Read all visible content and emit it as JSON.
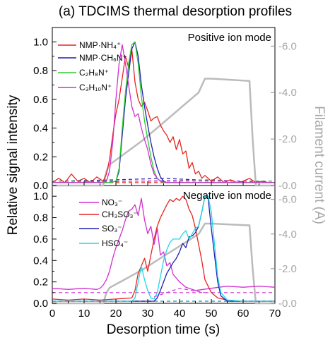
{
  "chart_data": {
    "type": "line",
    "title": "(a) TDCIMS thermal desorption profiles",
    "xlabel": "Desorption time (s)",
    "ylabel": "Relative signal intensity",
    "y2label": "Filament current (A)",
    "xlim": [
      0,
      70
    ],
    "x_ticks": [
      "0",
      "10",
      "20",
      "30",
      "40",
      "50",
      "60",
      "70"
    ],
    "panels": [
      {
        "mode_label": "Positive ion mode",
        "ylim": [
          0,
          1.1
        ],
        "y_ticks": [
          "0.0",
          "0.2",
          "0.4",
          "0.6",
          "0.8",
          "1.0"
        ],
        "y2lim": [
          0,
          6.8
        ],
        "y2_ticks": [
          "0.0",
          "2.0",
          "4.0",
          "6.0"
        ],
        "series": [
          {
            "legend": "NMP·NH₄⁺",
            "color": "#e8231f",
            "x": [
              0,
              2,
              4,
              6,
              8,
              10,
              12,
              14,
              16,
              17,
              18,
              19,
              20,
              21,
              22,
              23,
              24,
              25,
              26,
              27,
              28,
              29,
              30,
              31,
              32,
              33,
              34,
              35,
              36,
              37,
              38,
              39,
              40,
              41,
              42,
              43,
              44,
              45,
              46,
              47,
              48,
              50,
              52,
              54,
              56,
              58,
              60,
              62,
              64,
              66,
              68,
              70
            ],
            "y": [
              0.02,
              0.05,
              0.02,
              0.08,
              0.03,
              0.05,
              0.02,
              0.06,
              0.03,
              0.08,
              0.18,
              0.35,
              0.5,
              0.6,
              0.75,
              0.9,
              0.82,
              0.95,
              0.72,
              0.6,
              0.55,
              0.58,
              0.52,
              0.45,
              0.47,
              0.48,
              0.42,
              0.38,
              0.35,
              0.3,
              0.34,
              0.25,
              0.32,
              0.22,
              0.24,
              0.12,
              0.16,
              0.08,
              0.1,
              0.05,
              0.07,
              0.03,
              0.06,
              0.02,
              0.04,
              0.02,
              0.03,
              0.05,
              0.02,
              0.03,
              0.02,
              0.02
            ]
          },
          {
            "legend": "NMP·CH₆N⁺",
            "color": "#1f1fb4",
            "x": [
              0,
              5,
              10,
              15,
              18,
              20,
              21,
              22,
              23,
              24,
              25,
              26,
              27,
              28,
              29,
              30,
              31,
              32,
              33,
              34,
              35,
              36,
              38,
              40,
              45,
              50,
              55,
              60,
              65,
              70
            ],
            "y": [
              0.02,
              0.02,
              0.02,
              0.02,
              0.02,
              0.03,
              0.1,
              0.35,
              0.6,
              0.78,
              0.95,
              1.0,
              0.9,
              0.7,
              0.55,
              0.42,
              0.3,
              0.2,
              0.12,
              0.06,
              0.03,
              0.02,
              0.02,
              0.02,
              0.02,
              0.02,
              0.02,
              0.02,
              0.02,
              0.02
            ]
          },
          {
            "legend": "C₂H₈N⁺",
            "color": "#2ecc2e",
            "x": [
              0,
              5,
              10,
              15,
              18,
              20,
              21,
              22,
              23,
              24,
              25,
              26,
              27,
              28,
              29,
              30,
              31,
              32,
              33,
              34,
              35,
              36,
              38,
              40,
              45,
              50,
              55,
              60,
              65,
              70
            ],
            "y": [
              0.02,
              0.02,
              0.02,
              0.02,
              0.02,
              0.03,
              0.12,
              0.4,
              0.65,
              0.85,
              0.98,
              1.0,
              0.85,
              0.62,
              0.45,
              0.32,
              0.2,
              0.1,
              0.05,
              0.03,
              0.02,
              0.02,
              0.02,
              0.02,
              0.02,
              0.02,
              0.02,
              0.02,
              0.02,
              0.02
            ]
          },
          {
            "legend": "C₃H₁₀N⁺",
            "color": "#d12fd1",
            "x": [
              0,
              5,
              10,
              15,
              17,
              18,
              19,
              20,
              21,
              22,
              23,
              24,
              25,
              26,
              27,
              28,
              29,
              30,
              31,
              32,
              33,
              34,
              36,
              40,
              45,
              50,
              55,
              60,
              65,
              70
            ],
            "y": [
              0.02,
              0.02,
              0.02,
              0.02,
              0.03,
              0.1,
              0.3,
              0.6,
              0.85,
              0.98,
              0.85,
              0.7,
              0.55,
              0.48,
              0.5,
              0.4,
              0.32,
              0.25,
              0.15,
              0.08,
              0.05,
              0.03,
              0.02,
              0.02,
              0.02,
              0.02,
              0.02,
              0.02,
              0.02,
              0.02
            ]
          }
        ],
        "dashed_series": [
          {
            "color": "#e8231f",
            "x": [
              0,
              70
            ],
            "y": [
              0.02,
              0.02
            ]
          },
          {
            "color": "#1f1fb4",
            "x": [
              0,
              20,
              35,
              55,
              70
            ],
            "y": [
              0.03,
              0.04,
              0.05,
              0.03,
              0.03
            ]
          },
          {
            "color": "#2ecc2e",
            "x": [
              0,
              70
            ],
            "y": [
              0.03,
              0.03
            ]
          },
          {
            "color": "#d12fd1",
            "x": [
              0,
              25,
              50,
              70
            ],
            "y": [
              0.02,
              0.03,
              0.04,
              0.02
            ]
          }
        ],
        "filament_current": {
          "color": "#bbbbbb",
          "x": [
            0,
            16,
            17,
            18,
            22,
            28,
            34,
            40,
            46,
            48,
            50,
            56,
            62,
            63,
            64,
            70
          ],
          "y": [
            0,
            0,
            0.6,
            0.9,
            1.3,
            1.9,
            2.6,
            3.3,
            4.0,
            4.6,
            4.6,
            4.55,
            4.5,
            2.0,
            0,
            0
          ]
        }
      },
      {
        "mode_label": "Negative ion mode",
        "ylim": [
          0,
          1.1
        ],
        "y_ticks": [
          "0.0",
          "0.2",
          "0.4",
          "0.6",
          "0.8",
          "1.0"
        ],
        "y2lim": [
          0,
          6.8
        ],
        "y2_ticks": [
          "0.0",
          "2.0",
          "4.0",
          "6.0"
        ],
        "series": [
          {
            "legend": "NO₃⁻",
            "color": "#d12fd1",
            "x": [
              0,
              5,
              10,
              14,
              15,
              16,
              17,
              18,
              19,
              20,
              21,
              22,
              23,
              24,
              25,
              26,
              27,
              28,
              29,
              30,
              31,
              32,
              33,
              34,
              35,
              36,
              37,
              38,
              40,
              42,
              45,
              50,
              55,
              60,
              65,
              70
            ],
            "y": [
              0.14,
              0.13,
              0.14,
              0.13,
              0.14,
              0.17,
              0.22,
              0.3,
              0.42,
              0.52,
              0.6,
              0.68,
              0.78,
              0.86,
              0.88,
              0.92,
              0.82,
              0.98,
              0.78,
              0.65,
              0.72,
              0.55,
              0.7,
              0.45,
              0.48,
              0.35,
              0.38,
              0.27,
              0.2,
              0.15,
              0.12,
              0.14,
              0.16,
              0.15,
              0.16,
              0.15
            ]
          },
          {
            "legend": "CH₃SO₃⁻",
            "color": "#e8231f",
            "x": [
              0,
              5,
              10,
              15,
              20,
              25,
              26,
              27,
              28,
              29,
              30,
              31,
              32,
              33,
              34,
              35,
              36,
              37,
              38,
              39,
              40,
              41,
              42,
              43,
              44,
              45,
              46,
              47,
              48,
              50,
              52,
              55,
              60,
              65,
              70
            ],
            "y": [
              0.04,
              0.03,
              0.04,
              0.03,
              0.04,
              0.05,
              0.12,
              0.28,
              0.35,
              0.42,
              0.3,
              0.45,
              0.6,
              0.72,
              0.8,
              0.86,
              0.92,
              0.97,
              0.95,
              0.98,
              0.96,
              1.0,
              0.97,
              0.88,
              0.82,
              0.7,
              0.55,
              0.4,
              0.22,
              0.1,
              0.05,
              0.03,
              0.02,
              0.02,
              0.02
            ]
          },
          {
            "legend": "SO₃⁻",
            "color": "#1f1fb4",
            "x": [
              0,
              5,
              10,
              15,
              20,
              25,
              28,
              30,
              32,
              33,
              34,
              35,
              36,
              37,
              38,
              39,
              40,
              41,
              42,
              43,
              44,
              45,
              46,
              47,
              48,
              49,
              50,
              51,
              52,
              53,
              55,
              60,
              65,
              70
            ],
            "y": [
              0.02,
              0.02,
              0.02,
              0.02,
              0.02,
              0.02,
              0.02,
              0.02,
              0.02,
              0.05,
              0.12,
              0.2,
              0.28,
              0.33,
              0.38,
              0.42,
              0.48,
              0.56,
              0.52,
              0.62,
              0.63,
              0.66,
              0.72,
              0.85,
              1.0,
              0.98,
              0.7,
              0.45,
              0.2,
              0.07,
              0.02,
              0.02,
              0.02,
              0.02
            ]
          },
          {
            "legend": "HSO₄⁻",
            "color": "#22d6e8",
            "x": [
              0,
              5,
              10,
              15,
              20,
              25,
              26,
              27,
              28,
              29,
              30,
              31,
              32,
              33,
              34,
              35,
              36,
              37,
              38,
              39,
              40,
              41,
              42,
              43,
              44,
              45,
              46,
              47,
              48,
              49,
              50,
              51,
              52,
              53,
              55,
              60,
              65,
              70
            ],
            "y": [
              0.02,
              0.02,
              0.02,
              0.02,
              0.02,
              0.02,
              0.05,
              0.2,
              0.35,
              0.22,
              0.12,
              0.05,
              0.04,
              0.1,
              0.25,
              0.4,
              0.5,
              0.57,
              0.6,
              0.6,
              0.6,
              0.65,
              0.68,
              0.6,
              0.65,
              0.7,
              0.72,
              0.85,
              1.0,
              1.0,
              0.85,
              0.55,
              0.25,
              0.1,
              0.03,
              0.02,
              0.02,
              0.02
            ]
          }
        ],
        "dashed_series": [
          {
            "color": "#d12fd1",
            "x": [
              0,
              70
            ],
            "y": [
              0.1,
              0.1
            ]
          },
          {
            "color": "#e8231f",
            "x": [
              0,
              70
            ],
            "y": [
              0.02,
              0.02
            ]
          },
          {
            "color": "#1f1fb4",
            "x": [
              0,
              70
            ],
            "y": [
              0.02,
              0.02
            ]
          },
          {
            "color": "#22d6e8",
            "x": [
              0,
              70
            ],
            "y": [
              0.02,
              0.02
            ]
          },
          {
            "color": "#d12fd1",
            "x": [
              32,
              36,
              40,
              44,
              48
            ],
            "y": [
              0.06,
              0.1,
              0.14,
              0.12,
              0.1
            ]
          }
        ],
        "filament_current": {
          "color": "#bbbbbb",
          "x": [
            0,
            16,
            17,
            18,
            22,
            28,
            34,
            40,
            46,
            48,
            50,
            56,
            62,
            63,
            64,
            70
          ],
          "y": [
            0,
            0,
            0.6,
            0.9,
            1.3,
            1.9,
            2.6,
            3.3,
            4.0,
            4.6,
            4.6,
            4.55,
            4.5,
            2.0,
            0,
            0
          ]
        }
      }
    ]
  }
}
